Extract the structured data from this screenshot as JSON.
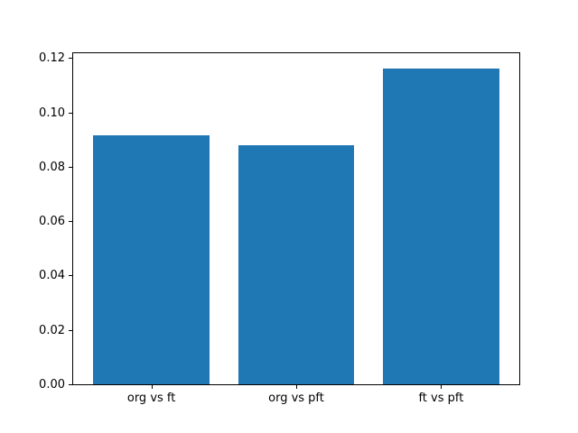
{
  "chart_data": {
    "type": "bar",
    "categories": [
      "org vs ft",
      "org vs pft",
      "ft vs pft"
    ],
    "values": [
      0.0915,
      0.0878,
      0.116
    ],
    "title": "",
    "xlabel": "",
    "ylabel": "",
    "ylim": [
      0,
      0.1218
    ],
    "yticks": [
      0.0,
      0.02,
      0.04,
      0.06,
      0.08,
      0.1,
      0.12
    ],
    "ytick_labels": [
      "0.00",
      "0.02",
      "0.04",
      "0.06",
      "0.08",
      "0.10",
      "0.12"
    ],
    "bar_color": "#1f77b4",
    "bar_width_fraction": 0.8,
    "grid": false,
    "legend": null,
    "spine_color": "#000000",
    "background_color": "#ffffff"
  }
}
